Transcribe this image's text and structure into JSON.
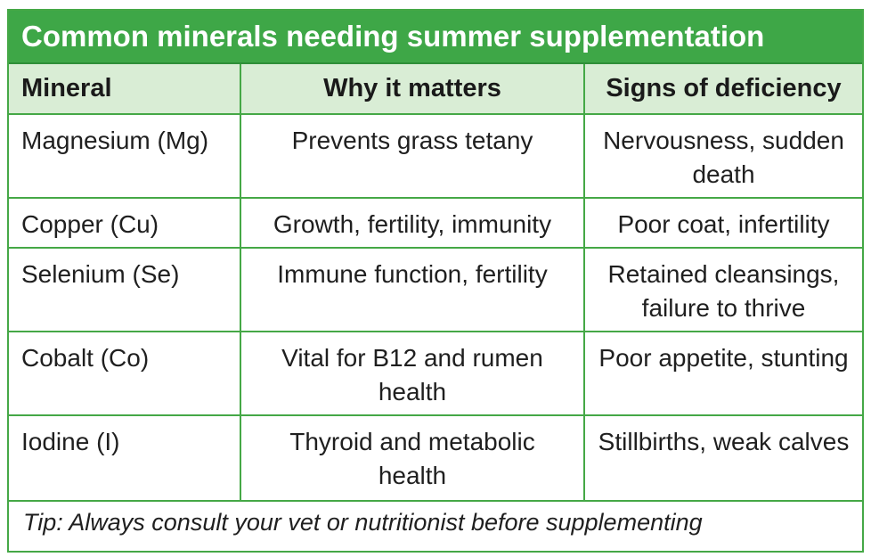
{
  "title": "Common minerals needing summer supplementation",
  "headers": [
    "Mineral",
    "Why it matters",
    "Signs of deficiency"
  ],
  "rows": [
    {
      "mineral": "Magnesium (Mg)",
      "why": "Prevents grass tetany",
      "signs": "Nervousness, sudden death"
    },
    {
      "mineral": "Copper (Cu)",
      "why": "Growth, fertility, immunity",
      "signs": "Poor coat, infertility"
    },
    {
      "mineral": "Selenium (Se)",
      "why": "Immune function, fertility",
      "signs": "Retained cleansings, failure to thrive"
    },
    {
      "mineral": "Cobalt (Co)",
      "why": "Vital for B12 and rumen health",
      "signs": "Poor appetite, stunting"
    },
    {
      "mineral": "Iodine (I)",
      "why": "Thyroid and metabolic health",
      "signs": "Stillbirths, weak calves"
    }
  ],
  "tip": "Tip: Always consult your vet or nutritionist before supplementing",
  "colors": {
    "header_green": "#3ea747",
    "header_row_tint": "#d9edd5",
    "border_green": "#45a846"
  }
}
